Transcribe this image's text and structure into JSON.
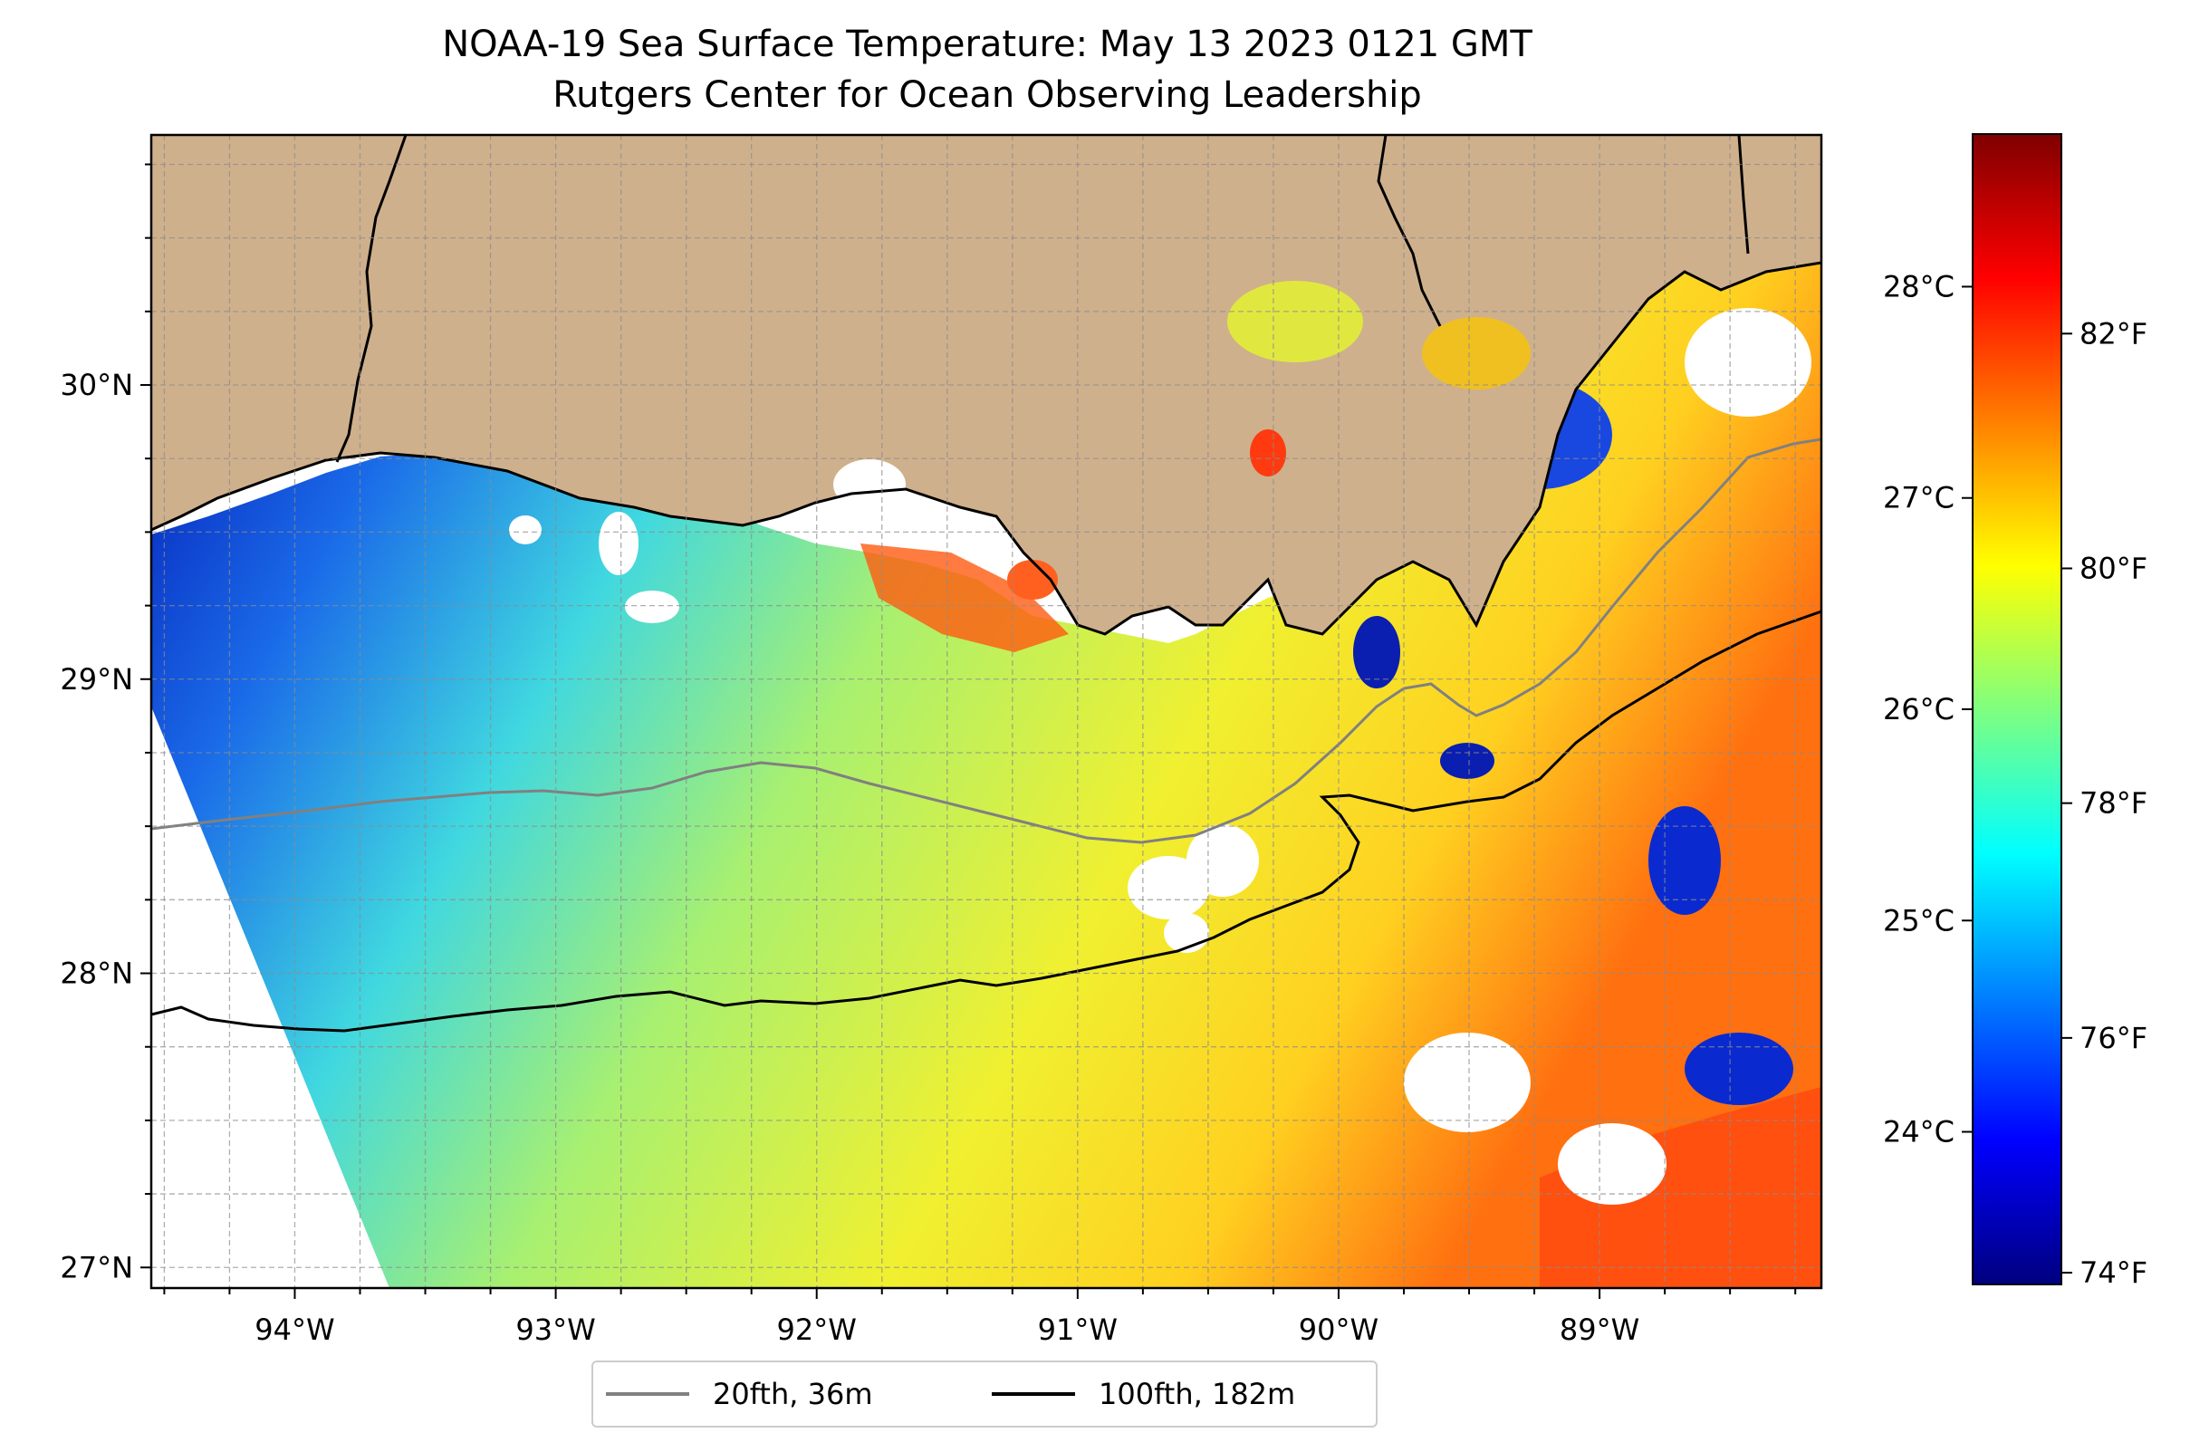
{
  "title": {
    "line1": "NOAA-19 Sea Surface Temperature: May 13 2023 0121 GMT",
    "line2": "Rutgers Center for Ocean Observing Leadership"
  },
  "map": {
    "extent": {
      "lon": [
        -94.55,
        -88.15
      ],
      "lat": [
        26.93,
        30.85
      ]
    },
    "land_color": "#cfb08c",
    "x_ticks": [
      {
        "lon": -94,
        "label": "94°W"
      },
      {
        "lon": -93,
        "label": "93°W"
      },
      {
        "lon": -92,
        "label": "92°W"
      },
      {
        "lon": -91,
        "label": "91°W"
      },
      {
        "lon": -90,
        "label": "90°W"
      },
      {
        "lon": -89,
        "label": "89°W"
      }
    ],
    "y_ticks": [
      {
        "lat": 30,
        "label": "30°N"
      },
      {
        "lat": 29,
        "label": "29°N"
      },
      {
        "lat": 28,
        "label": "28°N"
      },
      {
        "lat": 27,
        "label": "27°N"
      }
    ]
  },
  "colorbar": {
    "colormap": "jet",
    "fahrenheit_ticks": [
      {
        "value": 74,
        "label": "74°F"
      },
      {
        "value": 76,
        "label": "76°F"
      },
      {
        "value": 78,
        "label": "78°F"
      },
      {
        "value": 80,
        "label": "80°F"
      },
      {
        "value": 82,
        "label": "82°F"
      }
    ],
    "celsius_ticks": [
      {
        "value": 24,
        "label": "24°C"
      },
      {
        "value": 25,
        "label": "25°C"
      },
      {
        "value": 26,
        "label": "26°C"
      },
      {
        "value": 27,
        "label": "27°C"
      },
      {
        "value": 28,
        "label": "28°C"
      }
    ],
    "range_f": [
      73.9,
      83.7
    ]
  },
  "legend": {
    "items": [
      {
        "label": "20fth, 36m",
        "color": "#808080"
      },
      {
        "label": "100fth, 182m",
        "color": "#000000"
      }
    ]
  }
}
